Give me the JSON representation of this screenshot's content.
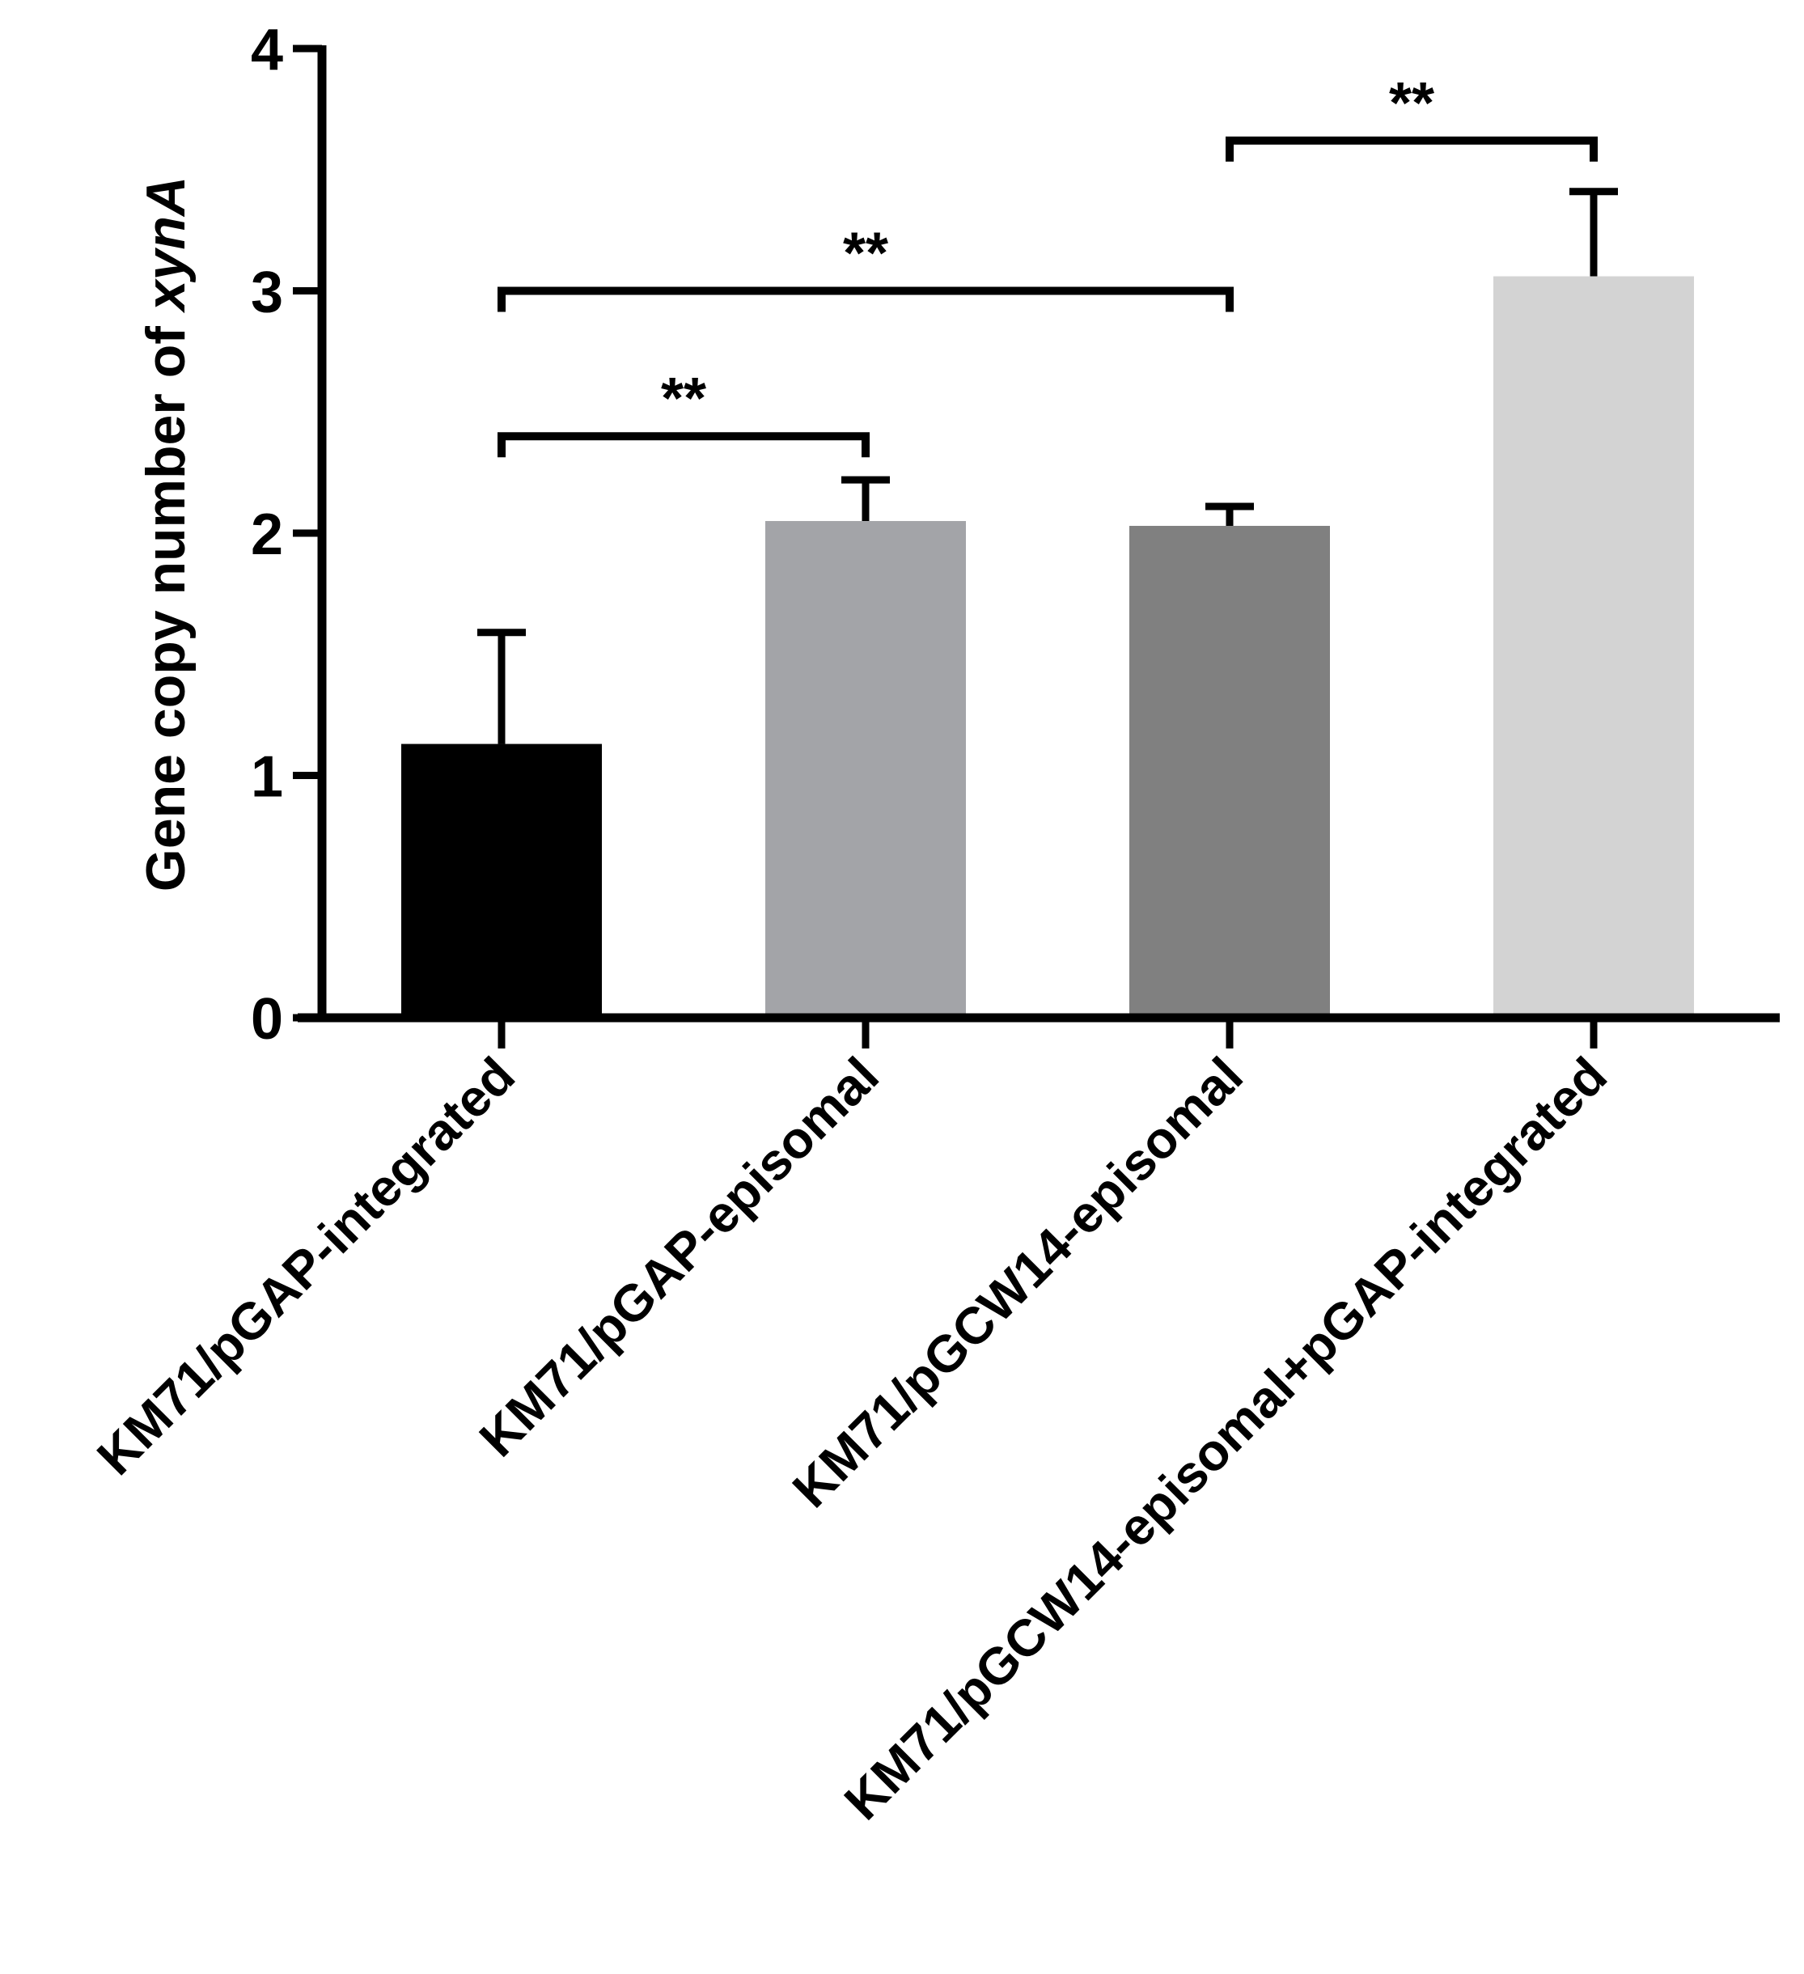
{
  "chart_data": {
    "type": "bar",
    "title": "",
    "xlabel": "",
    "ylabel": {
      "text": "Gene copy number of ",
      "italic": "xynA"
    },
    "ylim": [
      0,
      4
    ],
    "yticks": [
      0,
      1,
      2,
      3,
      4
    ],
    "grid": false,
    "categories": [
      "KM71/pGAP-integrated",
      "KM71/pGAP-episomal",
      "KM71/pGCW14-episomal",
      "KM71/pGCW14-episomal+pGAP-integrated"
    ],
    "values": [
      1.13,
      2.05,
      2.03,
      3.06
    ],
    "errors": [
      0.46,
      0.17,
      0.08,
      0.35
    ],
    "colors": [
      "#000000",
      "#a3a4a8",
      "#808080",
      "#d3d3d3"
    ],
    "significance": [
      {
        "from": 0,
        "to": 1,
        "label": "**",
        "level": 2.4
      },
      {
        "from": 0,
        "to": 2,
        "label": "**",
        "level": 3.0
      },
      {
        "from": 2,
        "to": 3,
        "label": "**",
        "level": 3.62
      }
    ]
  }
}
